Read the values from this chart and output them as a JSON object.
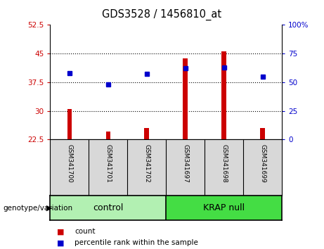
{
  "title": "GDS3528 / 1456810_at",
  "samples": [
    "GSM341700",
    "GSM341701",
    "GSM341702",
    "GSM341697",
    "GSM341698",
    "GSM341699"
  ],
  "red_values": [
    30.5,
    24.5,
    25.5,
    43.8,
    45.5,
    25.5
  ],
  "blue_pct": [
    58,
    48,
    57,
    62,
    63,
    55
  ],
  "baseline": 22.5,
  "ylim_left": [
    22.5,
    52.5
  ],
  "ylim_right": [
    0,
    100
  ],
  "yticks_left": [
    22.5,
    30,
    37.5,
    45,
    52.5
  ],
  "yticks_right": [
    0,
    25,
    50,
    75,
    100
  ],
  "ytick_labels_left": [
    "22.5",
    "30",
    "37.5",
    "45",
    "52.5"
  ],
  "ytick_labels_right": [
    "0",
    "25",
    "50",
    "75",
    "100%"
  ],
  "groups": [
    {
      "label": "control",
      "start": 0,
      "end": 2,
      "color": "#b2f0b2"
    },
    {
      "label": "KRAP null",
      "start": 3,
      "end": 5,
      "color": "#44dd44"
    }
  ],
  "group_header": "genotype/variation",
  "bar_color": "#CC0000",
  "marker_color": "#0000CC",
  "bar_width": 0.12,
  "grid_color": "black",
  "cell_bg": "#d8d8d8",
  "plot_bg": "white",
  "legend_count": "count",
  "legend_pct": "percentile rank within the sample",
  "left_axis_color": "#CC0000",
  "right_axis_color": "#0000CC"
}
